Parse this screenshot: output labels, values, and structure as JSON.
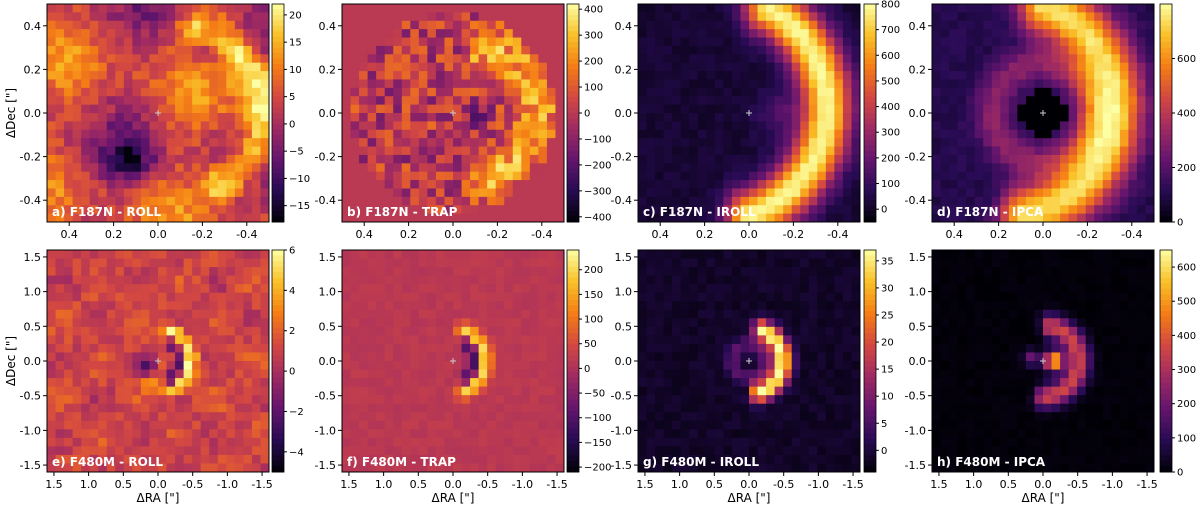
{
  "chart_data": [
    {
      "id": "a",
      "type": "heatmap",
      "label": "a) F187N - ROLL",
      "cmap": "inferno",
      "pattern": "roll",
      "xlim": [
        0.5,
        -0.5
      ],
      "ylim": [
        -0.5,
        0.5
      ],
      "xticks": [
        "0.4",
        "0.2",
        "0.0",
        "-0.2",
        "-0.4"
      ],
      "yticks": [
        "0.4",
        "0.2",
        "0.0",
        "-0.2",
        "-0.4"
      ],
      "xlabel": "",
      "ylabel": "ΔDec [\"]",
      "clim": [
        -18,
        22
      ],
      "cbar_ticks": [
        "20",
        "15",
        "10",
        "5",
        "0",
        "−5",
        "−10",
        "−15"
      ]
    },
    {
      "id": "b",
      "type": "heatmap",
      "label": "b) F187N - TRAP",
      "cmap": "inferno",
      "pattern": "trap",
      "xlim": [
        0.5,
        -0.5
      ],
      "ylim": [
        -0.5,
        0.5
      ],
      "xticks": [
        "0.4",
        "0.2",
        "0.0",
        "-0.2",
        "-0.4"
      ],
      "yticks": [
        "0.4",
        "0.2",
        "0.0",
        "-0.2",
        "-0.4"
      ],
      "xlabel": "",
      "ylabel": "",
      "clim": [
        -420,
        420
      ],
      "cbar_ticks": [
        "400",
        "300",
        "200",
        "100",
        "0",
        "−100",
        "−200",
        "−300",
        "−400"
      ]
    },
    {
      "id": "c",
      "type": "heatmap",
      "label": "c) F187N - IROLL",
      "cmap": "inferno",
      "pattern": "iroll",
      "xlim": [
        0.5,
        -0.5
      ],
      "ylim": [
        -0.5,
        0.5
      ],
      "xticks": [
        "0.4",
        "0.2",
        "0.0",
        "-0.2",
        "-0.4"
      ],
      "yticks": [
        "0.4",
        "0.2",
        "0.0",
        "-0.2",
        "-0.4"
      ],
      "xlabel": "",
      "ylabel": "",
      "clim": [
        -50,
        800
      ],
      "cbar_ticks": [
        "800",
        "700",
        "600",
        "500",
        "400",
        "300",
        "200",
        "100",
        "0"
      ]
    },
    {
      "id": "d",
      "type": "heatmap",
      "label": "d) F187N - IPCA",
      "cmap": "inferno",
      "pattern": "ipca",
      "xlim": [
        0.5,
        -0.5
      ],
      "ylim": [
        -0.5,
        0.5
      ],
      "xticks": [
        "0.4",
        "0.2",
        "0.0",
        "-0.2",
        "-0.4"
      ],
      "yticks": [
        "0.4",
        "0.2",
        "0.0",
        "-0.2",
        "-0.4"
      ],
      "xlabel": "",
      "ylabel": "",
      "clim": [
        0,
        800
      ],
      "cbar_ticks": [
        "600",
        "400",
        "200",
        "0"
      ]
    },
    {
      "id": "e",
      "type": "heatmap",
      "label": "e) F480M - ROLL",
      "cmap": "inferno",
      "pattern": "roll2",
      "xlim": [
        1.6,
        -1.6
      ],
      "ylim": [
        -1.6,
        1.6
      ],
      "xticks": [
        "1.5",
        "1.0",
        "0.5",
        "0.0",
        "-0.5",
        "-1.0",
        "-1.5"
      ],
      "yticks": [
        "1.5",
        "1.0",
        "0.5",
        "0.0",
        "-0.5",
        "-1.0",
        "-1.5"
      ],
      "xlabel": "ΔRA [\"]",
      "ylabel": "ΔDec [\"]",
      "clim": [
        -5,
        6
      ],
      "cbar_ticks": [
        "6",
        "4",
        "2",
        "0",
        "−2",
        "−4"
      ]
    },
    {
      "id": "f",
      "type": "heatmap",
      "label": "f) F480M - TRAP",
      "cmap": "inferno",
      "pattern": "trap2",
      "xlim": [
        1.6,
        -1.6
      ],
      "ylim": [
        -1.6,
        1.6
      ],
      "xticks": [
        "1.5",
        "1.0",
        "0.5",
        "0.0",
        "-0.5",
        "-1.0",
        "-1.5"
      ],
      "yticks": [
        "1.5",
        "1.0",
        "0.5",
        "0.0",
        "-0.5",
        "-1.0",
        "-1.5"
      ],
      "xlabel": "ΔRA [\"]",
      "ylabel": "",
      "clim": [
        -210,
        240
      ],
      "cbar_ticks": [
        "200",
        "150",
        "100",
        "50",
        "0",
        "−50",
        "−100",
        "−150",
        "−200"
      ]
    },
    {
      "id": "g",
      "type": "heatmap",
      "label": "g) F480M - IROLL",
      "cmap": "inferno",
      "pattern": "iroll2",
      "xlim": [
        1.6,
        -1.6
      ],
      "ylim": [
        -1.6,
        1.6
      ],
      "xticks": [
        "1.5",
        "1.0",
        "0.5",
        "0.0",
        "-0.5",
        "-1.0",
        "-1.5"
      ],
      "yticks": [
        "1.5",
        "1.0",
        "0.5",
        "0.0",
        "-0.5",
        "-1.0",
        "-1.5"
      ],
      "xlabel": "ΔRA [\"]",
      "ylabel": "",
      "clim": [
        -4,
        37
      ],
      "cbar_ticks": [
        "35",
        "30",
        "25",
        "20",
        "15",
        "10",
        "5",
        "0"
      ]
    },
    {
      "id": "h",
      "type": "heatmap",
      "label": "h) F480M - IPCA",
      "cmap": "inferno",
      "pattern": "ipca2",
      "xlim": [
        1.6,
        -1.6
      ],
      "ylim": [
        -1.6,
        1.6
      ],
      "xticks": [
        "1.5",
        "1.0",
        "0.5",
        "0.0",
        "-0.5",
        "-1.0",
        "-1.5"
      ],
      "yticks": [
        "1.5",
        "1.0",
        "0.5",
        "0.0",
        "-0.5",
        "-1.0",
        "-1.5"
      ],
      "xlabel": "ΔRA [\"]",
      "ylabel": "",
      "clim": [
        0,
        650
      ],
      "cbar_ticks": [
        "600",
        "500",
        "400",
        "300",
        "200",
        "100",
        "0"
      ]
    }
  ]
}
